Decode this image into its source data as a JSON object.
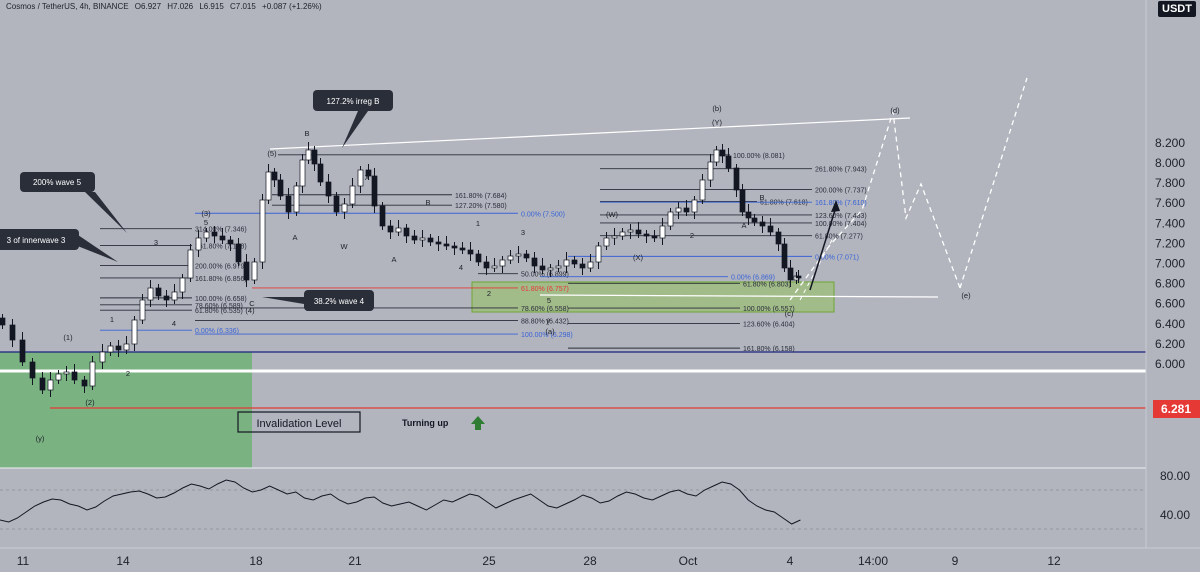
{
  "header": {
    "symbol": "Cosmos / TetherUS, 4h, BINANCE",
    "open": "O6.927",
    "high": "H7.026",
    "low": "L6.915",
    "close": "C7.015",
    "change": "+0.087 (+1.26%)"
  },
  "currency_badge": "USDT",
  "colors": {
    "background": "#b2b5be",
    "candle": "#131722",
    "fib_line": "#2a2e39",
    "fib_blue": "#3a63d6",
    "invalidation_red": "#e53935",
    "green_zone": "#4caf50",
    "price_tag_bg": "#e53935"
  },
  "chart_data": {
    "type": "candlestick",
    "price_axis": {
      "ticks": [
        "8.200",
        "8.000",
        "7.800",
        "7.600",
        "7.400",
        "7.200",
        "7.000",
        "6.800",
        "6.600",
        "6.400",
        "6.200",
        "6.000"
      ],
      "current_price_tag": "6.281"
    },
    "x_axis_ticks": [
      "11",
      "14",
      "18",
      "21",
      "25",
      "28",
      "Oct",
      "4",
      "14:00",
      "9",
      "12"
    ],
    "oscillator_axis_ticks": [
      "80.00",
      "40.00"
    ],
    "fib_labels": [
      {
        "text": "100.00% (8.081)",
        "price": 8.081
      },
      {
        "text": "261.80% (7.943)",
        "price": 7.943
      },
      {
        "text": "200.00% (7.737)",
        "price": 7.737
      },
      {
        "text": "161.80% (7.684)",
        "price": 7.684
      },
      {
        "text": "61.80% (7.618)",
        "price": 7.618
      },
      {
        "text": "161.80% (7.610)",
        "price": 7.61
      },
      {
        "text": "127.20% (7.580)",
        "price": 7.58
      },
      {
        "text": "0.00% (7.500)",
        "price": 7.5
      },
      {
        "text": "123.60% (7.483)",
        "price": 7.483
      },
      {
        "text": "100.00% (7.404)",
        "price": 7.404
      },
      {
        "text": "314.00% (7.346)",
        "price": 7.346
      },
      {
        "text": "61.80% (7.277)",
        "price": 7.277
      },
      {
        "text": "261.80% (7.178)",
        "price": 7.178
      },
      {
        "text": "0.00% (7.071)",
        "price": 7.071
      },
      {
        "text": "200.00% (6.979)",
        "price": 6.979
      },
      {
        "text": "50.00% (6.899)",
        "price": 6.899
      },
      {
        "text": "0.00% (6.869)",
        "price": 6.869
      },
      {
        "text": "161.80% (6.856)",
        "price": 6.856
      },
      {
        "text": "61.80% (6.803)",
        "price": 6.803
      },
      {
        "text": "61.80% (6.757)",
        "price": 6.757
      },
      {
        "text": "100.00% (6.658)",
        "price": 6.658
      },
      {
        "text": "78.60% (6.589)",
        "price": 6.589
      },
      {
        "text": "78.60% (6.558)",
        "price": 6.558
      },
      {
        "text": "100.00% (6.557)",
        "price": 6.557
      },
      {
        "text": "61.80% (6.535)",
        "price": 6.535
      },
      {
        "text": "88.80% (6.432)",
        "price": 6.432
      },
      {
        "text": "123.60% (6.404)",
        "price": 6.404
      },
      {
        "text": "0.00% (6.336)",
        "price": 6.336
      },
      {
        "text": "100.00% (6.298)",
        "price": 6.298
      },
      {
        "text": "161.80% (6.158)",
        "price": 6.158
      }
    ],
    "callouts": [
      "127.2% irreg B",
      "200% wave 5",
      "3 of innerwave 3",
      "38.2% wave 4"
    ],
    "annotations": {
      "invalidation": "Invalidation Level",
      "turning_up": "Turning up"
    },
    "wave_labels": [
      "(y)",
      "(1)",
      "(2)",
      "(3)",
      "(4)",
      "(5)",
      "(a)",
      "(b)",
      "(c)",
      "(d)",
      "(e)",
      "(W)",
      "(X)",
      "(Y)",
      "1",
      "2",
      "3",
      "4",
      "5",
      "A",
      "B",
      "C",
      "W",
      "X",
      "Y",
      "y"
    ],
    "grid": false
  }
}
